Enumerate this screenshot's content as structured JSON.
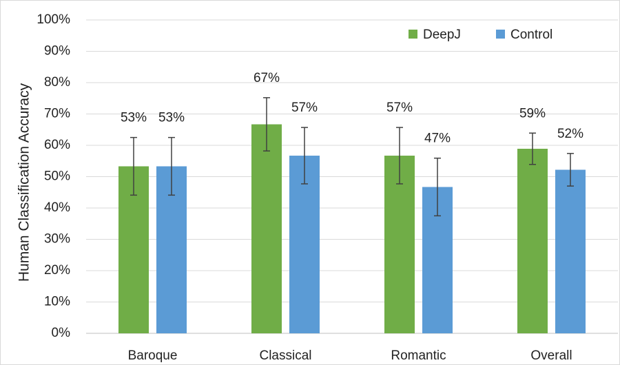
{
  "chart_data": {
    "type": "bar",
    "y_label": "Human Classification Accuracy",
    "categories": [
      "Baroque",
      "Classical",
      "Romantic",
      "Overall"
    ],
    "series": [
      {
        "name": "DeepJ",
        "color": "#70ad47",
        "values": [
          53.3,
          66.7,
          56.7,
          58.9
        ],
        "value_labels": [
          "53%",
          "67%",
          "57%",
          "59%"
        ],
        "errors": [
          9.2,
          8.5,
          9,
          5
        ]
      },
      {
        "name": "Control",
        "color": "#5b9bd5",
        "values": [
          53.3,
          56.7,
          46.7,
          52.2
        ],
        "value_labels": [
          "53%",
          "57%",
          "47%",
          "52%"
        ],
        "errors": [
          9.2,
          9,
          9.2,
          5.2
        ]
      }
    ],
    "ylim": [
      0,
      100
    ],
    "yticks": [
      {
        "value": 0,
        "label": "0%"
      },
      {
        "value": 10,
        "label": "10%"
      },
      {
        "value": 20,
        "label": "20%"
      },
      {
        "value": 30,
        "label": "30%"
      },
      {
        "value": 40,
        "label": "40%"
      },
      {
        "value": 50,
        "label": "50%"
      },
      {
        "value": 60,
        "label": "60%"
      },
      {
        "value": 70,
        "label": "70%"
      },
      {
        "value": 80,
        "label": "80%"
      },
      {
        "value": 90,
        "label": "90%"
      },
      {
        "value": 100,
        "label": "100%"
      }
    ],
    "grid": true,
    "legend": "top-right"
  }
}
